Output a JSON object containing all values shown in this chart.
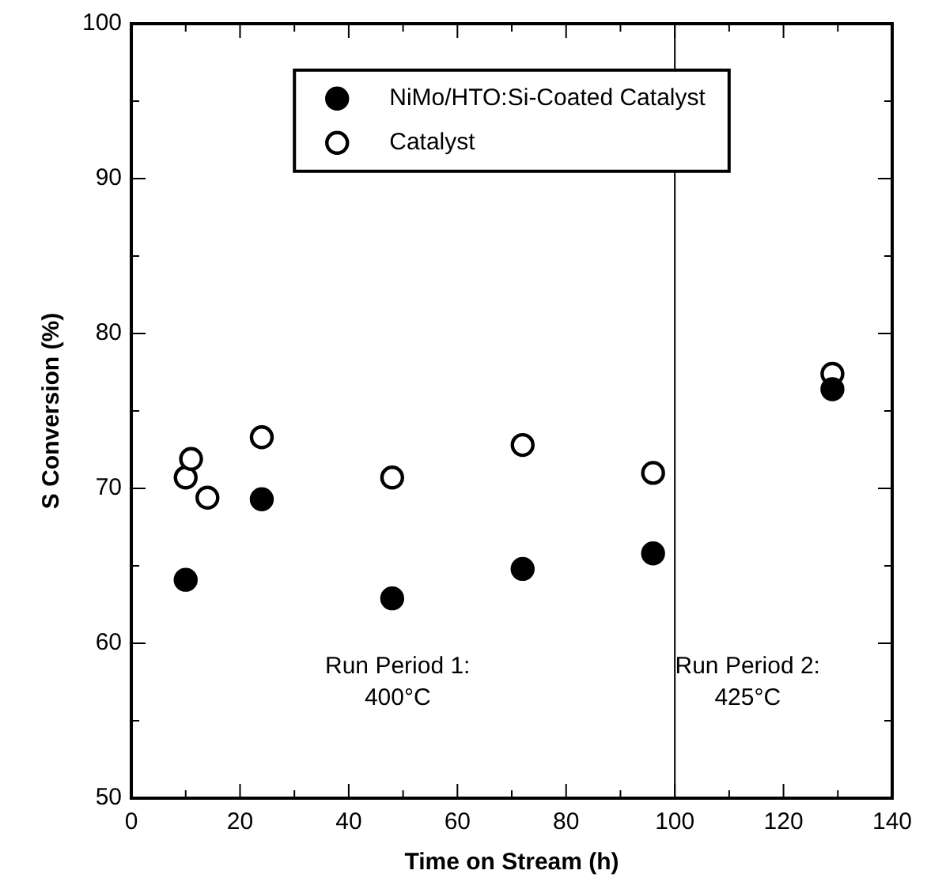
{
  "chart_data": {
    "type": "scatter",
    "xlabel": "Time on Stream (h)",
    "ylabel": "S Conversion (%)",
    "xlim": [
      0,
      140
    ],
    "ylim": [
      50,
      100
    ],
    "xticks": [
      0,
      {
        "value": 10,
        "label": null
      },
      20,
      {
        "value": 30,
        "label": null
      },
      40,
      {
        "value": 50,
        "label": null
      },
      60,
      {
        "value": 70,
        "label": null
      },
      80,
      {
        "value": 90,
        "label": null
      },
      100,
      {
        "value": 110,
        "label": null
      },
      120,
      {
        "value": 130,
        "label": null
      },
      140
    ],
    "yticks": [
      50,
      {
        "value": 55,
        "label": null
      },
      60,
      {
        "value": 65,
        "label": null
      },
      70,
      {
        "value": 75,
        "label": null
      },
      80,
      {
        "value": 85,
        "label": null
      },
      90,
      {
        "value": 95,
        "label": null
      },
      100
    ],
    "series": [
      {
        "name": "NiMo/HTO:Si-Coated Catalyst",
        "color": "#000000",
        "marker": "circle",
        "x": [
          10,
          24,
          48,
          72,
          96,
          129
        ],
        "values": [
          64.1,
          69.3,
          62.9,
          64.8,
          65.8,
          76.4
        ]
      },
      {
        "name": "Catalyst",
        "color": "#ffffff",
        "marker": "circle",
        "x": [
          10,
          11,
          14,
          24,
          48,
          72,
          96,
          129
        ],
        "values": [
          70.7,
          71.9,
          69.4,
          73.3,
          70.7,
          72.8,
          71.0,
          77.4
        ]
      }
    ],
    "ref_lines": [
      {
        "axis": "x",
        "value": 100,
        "color": "#000000"
      }
    ],
    "annotations": [
      "Run Period 1:\n400°C",
      "Run Period 2:\n425°C"
    ],
    "legend": "top",
    "grid": false
  }
}
